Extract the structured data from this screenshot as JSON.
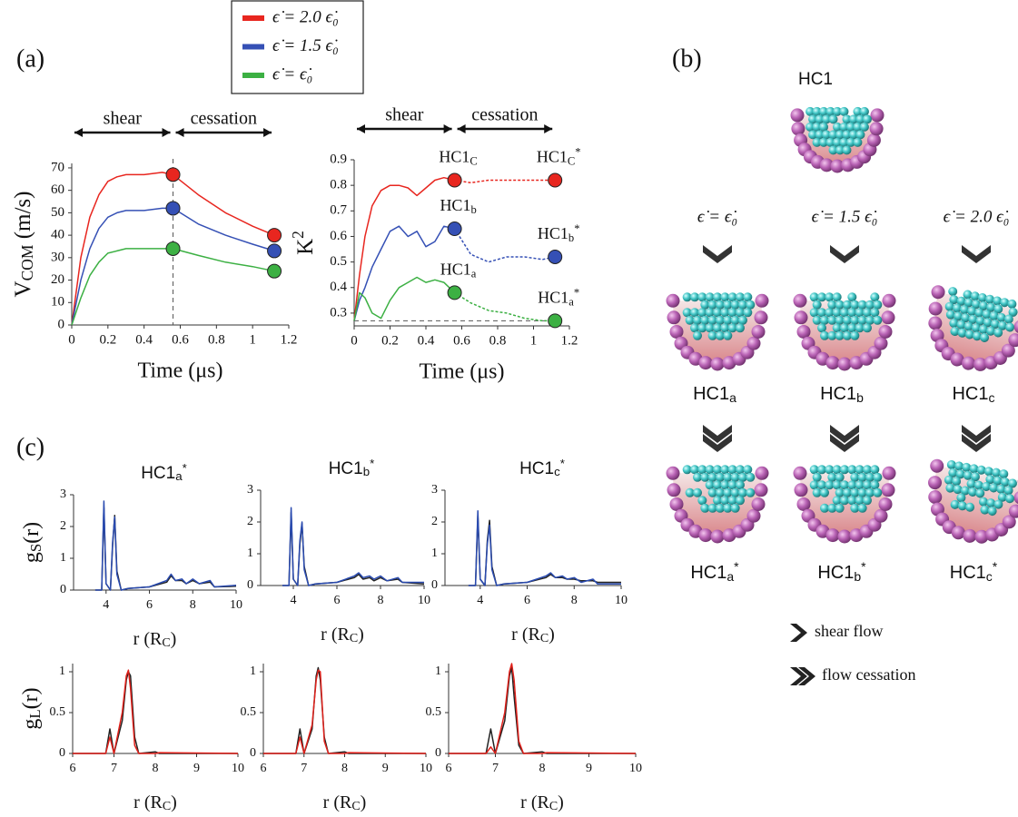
{
  "panels": {
    "a": "(a)",
    "c": "(c)"
  },
  "chart_data": [
    {
      "type": "line",
      "ylabel": {
        "base": "V",
        "sub": "COM",
        "after": " (m/s)"
      },
      "xlabel": "Time (μs)",
      "xlim": [
        0,
        1.2
      ],
      "ylim": [
        0,
        72
      ],
      "xticks": [
        0,
        0.2,
        0.4,
        0.6,
        0.8,
        1,
        1.2
      ],
      "yticks": [
        0,
        10,
        20,
        30,
        40,
        50,
        60,
        70
      ],
      "x": [
        0,
        0.05,
        0.1,
        0.15,
        0.2,
        0.25,
        0.3,
        0.4,
        0.5,
        0.56,
        0.7,
        0.85,
        1.0,
        1.12
      ],
      "series": [
        {
          "name": "ϵ̇ = 2.0 ϵ̇₀",
          "color": "#e8261f",
          "values": [
            0,
            30,
            48,
            58,
            64,
            66,
            67,
            67,
            68,
            67,
            58,
            50,
            44,
            40
          ]
        },
        {
          "name": "ϵ̇ = 1.5 ϵ̇₀",
          "color": "#3550b5",
          "values": [
            0,
            20,
            34,
            43,
            48,
            50,
            51,
            51,
            52,
            52,
            45,
            40,
            36,
            33
          ]
        },
        {
          "name": "ϵ̇ = ϵ̇₀",
          "color": "#3cb043",
          "values": [
            0,
            12,
            22,
            28,
            32,
            33,
            34,
            34,
            34,
            34,
            31,
            28,
            26,
            24
          ]
        }
      ],
      "points": [
        {
          "x": 0.56,
          "y": 67,
          "color": "#e8261f"
        },
        {
          "x": 1.12,
          "y": 40,
          "color": "#e8261f"
        },
        {
          "x": 0.56,
          "y": 52,
          "color": "#3550b5"
        },
        {
          "x": 1.12,
          "y": 33,
          "color": "#3550b5"
        },
        {
          "x": 0.56,
          "y": 34,
          "color": "#3cb043"
        },
        {
          "x": 1.12,
          "y": 24,
          "color": "#3cb043"
        }
      ],
      "vline": 0.56,
      "phases": [
        {
          "label": "shear",
          "from": 0,
          "to": 0.56
        },
        {
          "label": "cessation",
          "from": 0.56,
          "to": 1.12
        }
      ]
    },
    {
      "type": "line",
      "ylabel": {
        "base": "K",
        "sup": "2"
      },
      "xlabel": "Time (μs)",
      "xlim": [
        0,
        1.2
      ],
      "ylim": [
        0.25,
        0.9
      ],
      "xticks": [
        0,
        0.2,
        0.4,
        0.6,
        0.8,
        1,
        1.2
      ],
      "yticks": [
        0.3,
        0.4,
        0.5,
        0.6,
        0.7,
        0.8,
        0.9
      ],
      "series": [
        {
          "color": "#e8261f",
          "x": [
            0,
            0.03,
            0.06,
            0.1,
            0.15,
            0.2,
            0.25,
            0.3,
            0.35,
            0.4,
            0.45,
            0.5,
            0.56
          ],
          "values": [
            0.27,
            0.45,
            0.6,
            0.72,
            0.78,
            0.8,
            0.8,
            0.79,
            0.76,
            0.79,
            0.82,
            0.83,
            0.82
          ]
        },
        {
          "color": "#e8261f",
          "dashed": true,
          "x": [
            0.56,
            0.65,
            0.75,
            0.85,
            0.95,
            1.05,
            1.12
          ],
          "values": [
            0.82,
            0.81,
            0.82,
            0.82,
            0.82,
            0.82,
            0.82
          ]
        },
        {
          "color": "#3550b5",
          "x": [
            0,
            0.03,
            0.06,
            0.1,
            0.15,
            0.2,
            0.25,
            0.3,
            0.35,
            0.4,
            0.45,
            0.5,
            0.56
          ],
          "values": [
            0.27,
            0.35,
            0.4,
            0.48,
            0.55,
            0.62,
            0.64,
            0.6,
            0.62,
            0.56,
            0.58,
            0.64,
            0.63
          ]
        },
        {
          "color": "#3550b5",
          "dashed": true,
          "x": [
            0.56,
            0.65,
            0.75,
            0.85,
            0.95,
            1.05,
            1.12
          ],
          "values": [
            0.63,
            0.53,
            0.5,
            0.52,
            0.52,
            0.51,
            0.52
          ]
        },
        {
          "color": "#3cb043",
          "x": [
            0,
            0.03,
            0.06,
            0.1,
            0.15,
            0.2,
            0.25,
            0.3,
            0.35,
            0.4,
            0.45,
            0.5,
            0.56
          ],
          "values": [
            0.27,
            0.38,
            0.36,
            0.3,
            0.28,
            0.35,
            0.4,
            0.42,
            0.44,
            0.42,
            0.43,
            0.42,
            0.38
          ]
        },
        {
          "color": "#3cb043",
          "dashed": true,
          "x": [
            0.56,
            0.65,
            0.75,
            0.85,
            0.95,
            1.05,
            1.12
          ],
          "values": [
            0.38,
            0.34,
            0.31,
            0.3,
            0.28,
            0.27,
            0.27
          ]
        }
      ],
      "points": [
        {
          "x": 0.56,
          "y": 0.82,
          "color": "#e8261f",
          "label": {
            "base": "HC1",
            "sub": "C"
          }
        },
        {
          "x": 1.12,
          "y": 0.82,
          "color": "#e8261f",
          "label": {
            "base": "HC1",
            "sub": "C",
            "sup": "*"
          }
        },
        {
          "x": 0.56,
          "y": 0.63,
          "color": "#3550b5",
          "label": {
            "base": "HC1",
            "sub": "b"
          }
        },
        {
          "x": 1.12,
          "y": 0.52,
          "color": "#3550b5",
          "label": {
            "base": "HC1",
            "sub": "b",
            "sup": "*"
          }
        },
        {
          "x": 0.56,
          "y": 0.38,
          "color": "#3cb043",
          "label": {
            "base": "HC1",
            "sub": "a"
          }
        },
        {
          "x": 1.12,
          "y": 0.27,
          "color": "#3cb043",
          "label": {
            "base": "HC1",
            "sub": "a",
            "sup": "*"
          }
        }
      ],
      "hline": 0.27,
      "phases": [
        {
          "label": "shear",
          "from": 0,
          "to": 0.56
        },
        {
          "label": "cessation",
          "from": 0.56,
          "to": 1.12
        }
      ]
    },
    {
      "type": "line",
      "title": {
        "base": "HC1",
        "sub": "a",
        "sup": "*"
      },
      "ylabel": {
        "base": "g",
        "sub": "S",
        "after": "(r)"
      },
      "xlabel": {
        "base": "r (R",
        "sub": "C",
        "after": ")"
      },
      "xlim": [
        2.5,
        10
      ],
      "ylim": [
        0,
        3
      ],
      "xticks": [
        4,
        6,
        8,
        10
      ],
      "yticks": [
        0,
        1,
        2,
        3
      ],
      "x": [
        3.5,
        3.8,
        3.9,
        4.0,
        4.2,
        4.3,
        4.4,
        4.5,
        4.7,
        5,
        6,
        6.8,
        7,
        7.2,
        7.5,
        7.7,
        8,
        8.3,
        8.8,
        9,
        10
      ],
      "series": [
        {
          "color": "#222222",
          "values": [
            0,
            0,
            2.6,
            0.2,
            0,
            1.4,
            2.35,
            0.6,
            0,
            0.05,
            0.1,
            0.25,
            0.45,
            0.3,
            0.3,
            0.2,
            0.3,
            0.2,
            0.25,
            0.1,
            0.12
          ]
        },
        {
          "color": "#2a4bb0",
          "values": [
            0,
            0,
            2.8,
            0.2,
            0,
            1.5,
            2.3,
            0.5,
            0,
            0.05,
            0.1,
            0.3,
            0.5,
            0.3,
            0.35,
            0.2,
            0.35,
            0.2,
            0.3,
            0.1,
            0.15
          ]
        }
      ]
    },
    {
      "type": "line",
      "title": {
        "base": "HC1",
        "sub": "b",
        "sup": "*"
      },
      "xlabel": {
        "base": "r (R",
        "sub": "C",
        "after": ")"
      },
      "xlim": [
        2.5,
        10
      ],
      "ylim": [
        0,
        3
      ],
      "xticks": [
        4,
        6,
        8,
        10
      ],
      "yticks": [
        0,
        1,
        2,
        3
      ],
      "x": [
        3.5,
        3.8,
        3.9,
        4.0,
        4.2,
        4.3,
        4.4,
        4.5,
        4.7,
        5,
        6,
        6.8,
        7,
        7.2,
        7.5,
        7.7,
        8,
        8.3,
        8.8,
        9,
        10
      ],
      "series": [
        {
          "color": "#222222",
          "values": [
            0,
            0,
            2.3,
            0.2,
            0,
            1.3,
            1.95,
            0.6,
            0,
            0.05,
            0.1,
            0.25,
            0.35,
            0.2,
            0.25,
            0.15,
            0.25,
            0.15,
            0.2,
            0.1,
            0.05
          ]
        },
        {
          "color": "#2a4bb0",
          "values": [
            0,
            0,
            2.45,
            0.2,
            0,
            1.4,
            2.0,
            0.5,
            0,
            0.05,
            0.1,
            0.3,
            0.4,
            0.25,
            0.3,
            0.2,
            0.3,
            0.15,
            0.25,
            0.1,
            0.1
          ]
        }
      ]
    },
    {
      "type": "line",
      "title": {
        "base": "HC1",
        "sub": "c",
        "sup": "*"
      },
      "xlabel": {
        "base": "r (R",
        "sub": "C",
        "after": ")"
      },
      "xlim": [
        2.5,
        10
      ],
      "ylim": [
        0,
        3
      ],
      "xticks": [
        4,
        6,
        8,
        10
      ],
      "yticks": [
        0,
        1,
        2,
        3
      ],
      "x": [
        3.5,
        3.8,
        3.9,
        4.0,
        4.2,
        4.3,
        4.4,
        4.5,
        4.7,
        5,
        6,
        6.8,
        7,
        7.2,
        7.5,
        7.7,
        8,
        8.3,
        8.8,
        9,
        10
      ],
      "series": [
        {
          "color": "#222222",
          "values": [
            0,
            0,
            2.2,
            0.2,
            0,
            1.4,
            2.05,
            0.6,
            0,
            0.05,
            0.1,
            0.25,
            0.35,
            0.25,
            0.25,
            0.2,
            0.2,
            0.15,
            0.15,
            0.1,
            0.1
          ]
        },
        {
          "color": "#2a4bb0",
          "values": [
            0,
            0,
            2.35,
            0.2,
            0,
            1.3,
            1.9,
            0.5,
            0,
            0.05,
            0.1,
            0.3,
            0.4,
            0.25,
            0.3,
            0.2,
            0.25,
            0.1,
            0.2,
            0.05,
            0.05
          ]
        }
      ]
    },
    {
      "type": "line",
      "ylabel": {
        "base": "g",
        "sub": "L",
        "after": "(r)"
      },
      "xlabel": {
        "base": "r (R",
        "sub": "C",
        "after": ")"
      },
      "xlim": [
        6,
        10
      ],
      "ylim": [
        0,
        1.1
      ],
      "xticks": [
        6,
        7,
        8,
        9,
        10
      ],
      "yticks": [
        0,
        0.5,
        1
      ],
      "x": [
        6,
        6.8,
        6.9,
        7.0,
        7.2,
        7.3,
        7.35,
        7.4,
        7.5,
        7.6,
        8,
        8.1,
        10
      ],
      "series": [
        {
          "color": "#222222",
          "values": [
            0,
            0,
            0.3,
            0,
            0.4,
            0.9,
            1.0,
            0.95,
            0.2,
            0,
            0.02,
            0,
            0
          ]
        },
        {
          "color": "#e0201a",
          "values": [
            0,
            0,
            0.2,
            0,
            0.5,
            0.95,
            1.02,
            0.8,
            0.1,
            0,
            0,
            0.01,
            0
          ]
        }
      ]
    },
    {
      "type": "line",
      "xlabel": {
        "base": "r (R",
        "sub": "C",
        "after": ")"
      },
      "xlim": [
        6,
        10
      ],
      "ylim": [
        0,
        1.1
      ],
      "xticks": [
        6,
        7,
        8,
        9,
        10
      ],
      "yticks": [
        0,
        0.5,
        1
      ],
      "x": [
        6,
        6.8,
        6.9,
        7.0,
        7.2,
        7.3,
        7.35,
        7.4,
        7.5,
        7.6,
        8,
        8.1,
        10
      ],
      "series": [
        {
          "color": "#222222",
          "values": [
            0,
            0,
            0.3,
            0,
            0.3,
            0.95,
            1.05,
            0.9,
            0.2,
            0,
            0.02,
            0,
            0
          ]
        },
        {
          "color": "#e0201a",
          "values": [
            0,
            0,
            0.2,
            0,
            0.35,
            0.9,
            1.02,
            1.0,
            0.15,
            0,
            0,
            0.01,
            0
          ]
        }
      ]
    },
    {
      "type": "line",
      "xlabel": {
        "base": "r (R",
        "sub": "C",
        "after": ")"
      },
      "xlim": [
        6,
        10
      ],
      "ylim": [
        0,
        1.1
      ],
      "xticks": [
        6,
        7,
        8,
        9,
        10
      ],
      "yticks": [
        0,
        0.5,
        1
      ],
      "x": [
        6,
        6.8,
        6.9,
        7.0,
        7.2,
        7.3,
        7.35,
        7.4,
        7.5,
        7.6,
        8,
        8.1,
        10
      ],
      "series": [
        {
          "color": "#222222",
          "values": [
            0,
            0,
            0.3,
            0,
            0.4,
            0.95,
            1.05,
            0.7,
            0.1,
            0,
            0.02,
            0,
            0
          ]
        },
        {
          "color": "#e0201a",
          "values": [
            0,
            0,
            0.08,
            0,
            0.5,
            1.0,
            1.1,
            0.9,
            0.15,
            0,
            0,
            0.01,
            0
          ]
        }
      ]
    }
  ],
  "panel_b": {
    "label": "(b)",
    "top": "HC1",
    "rates": [
      "ϵ̇ = ϵ̇₀",
      "ϵ̇ = 1.5 ϵ̇₀",
      "ϵ̇ = 2.0 ϵ̇₀"
    ],
    "sheared": [
      {
        "base": "HC1",
        "sub": "a"
      },
      {
        "base": "HC1",
        "sub": "b"
      },
      {
        "base": "HC1",
        "sub": "c"
      }
    ],
    "ceased": [
      {
        "base": "HC1",
        "sub": "a",
        "sup": "*"
      },
      {
        "base": "HC1",
        "sub": "b",
        "sup": "*"
      },
      {
        "base": "HC1",
        "sub": "c",
        "sup": "*"
      }
    ],
    "key": [
      "shear flow",
      "flow cessation"
    ]
  }
}
